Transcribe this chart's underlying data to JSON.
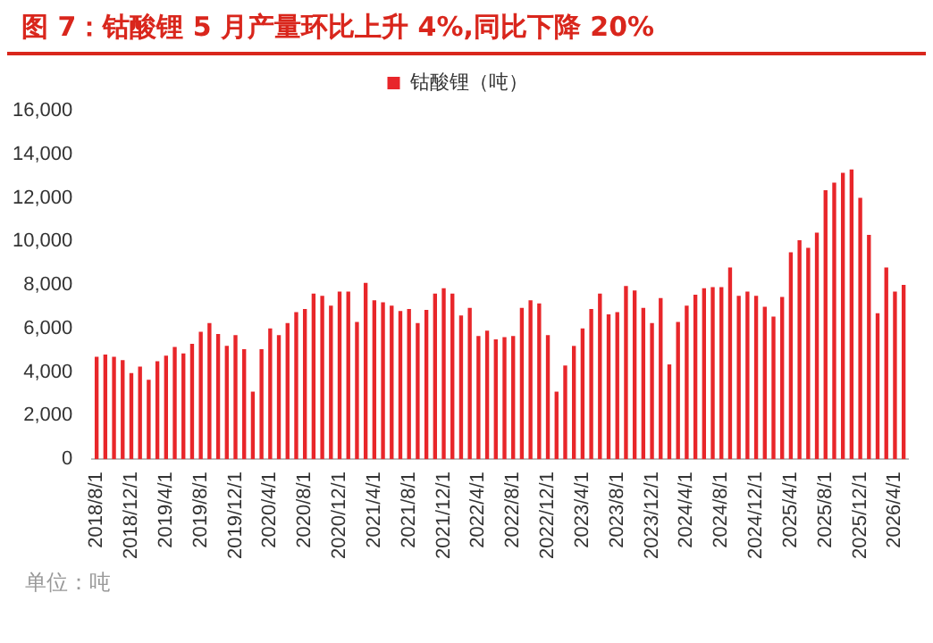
{
  "chart_data": {
    "type": "bar",
    "title": "图 7：钴酸锂 5 月产量环比上升 4%,同比下降 20%",
    "categories": [
      "2018/8/1",
      null,
      null,
      null,
      "2018/12/1",
      null,
      null,
      null,
      "2019/4/1",
      null,
      null,
      null,
      "2019/8/1",
      null,
      null,
      null,
      "2019/12/1",
      null,
      null,
      null,
      "2020/4/1",
      null,
      null,
      null,
      "2020/8/1",
      null,
      null,
      null,
      "2020/12/1",
      null,
      null,
      null,
      "2021/4/1",
      null,
      null,
      null,
      "2021/8/1",
      null,
      null,
      null,
      "2021/12/1",
      null,
      null,
      null,
      "2022/4/1",
      null,
      null,
      null,
      "2022/8/1",
      null,
      null,
      null,
      "2022/12/1",
      null,
      null,
      null,
      "2023/4/1",
      null,
      null,
      null,
      "2023/8/1",
      null,
      null,
      null,
      "2023/12/1",
      null,
      null,
      null,
      "2024/4/1",
      null,
      null,
      null,
      "2024/8/1",
      null,
      null,
      null,
      "2024/12/1",
      null,
      null,
      null,
      "2025/4/1",
      null,
      null,
      null,
      "2025/8/1",
      null,
      null,
      null,
      "2025/12/1",
      null,
      null,
      null,
      "2026/4/1",
      null
    ],
    "series": [
      {
        "name": "钴酸锂（吨）",
        "color": "#e8262a",
        "values": [
          4700,
          4800,
          4700,
          4550,
          3950,
          4250,
          3650,
          4500,
          4750,
          5150,
          4850,
          5300,
          5850,
          6250,
          5750,
          5200,
          5700,
          5050,
          3100,
          5050,
          6000,
          5700,
          6250,
          6750,
          6900,
          7600,
          7500,
          7050,
          7700,
          7700,
          6300,
          8100,
          7300,
          7200,
          7050,
          6800,
          6900,
          6250,
          6850,
          7600,
          7850,
          7600,
          6600,
          6950,
          5650,
          5900,
          5500,
          5600,
          5650,
          6950,
          7300,
          7150,
          5700,
          3100,
          4300,
          5200,
          6000,
          6900,
          7600,
          6650,
          6750,
          7950,
          7750,
          6950,
          6250,
          7400,
          4350,
          6300,
          7050,
          7550,
          7850,
          7900,
          7900,
          8800,
          7500,
          7700,
          7500,
          7000,
          6550,
          7450,
          9500,
          10050,
          9700,
          10400,
          12350,
          12700,
          13150,
          13300,
          12000,
          10300,
          6700,
          8800,
          7700,
          8000
        ]
      }
    ],
    "ylim": [
      0,
      16000
    ],
    "yticks": [
      0,
      {
        "value": 2000,
        "label": "2,000"
      },
      {
        "value": 4000,
        "label": "4,000"
      },
      {
        "value": 6000,
        "label": "6,000"
      },
      {
        "value": 8000,
        "label": "8,000"
      },
      {
        "value": 10000,
        "label": "10,000"
      },
      {
        "value": 12000,
        "label": "12,000"
      },
      {
        "value": 14000,
        "label": "14,000"
      },
      {
        "value": 16000,
        "label": "16,000"
      }
    ],
    "grid": false,
    "legend": "top",
    "annotations": [
      "单位：吨"
    ]
  }
}
